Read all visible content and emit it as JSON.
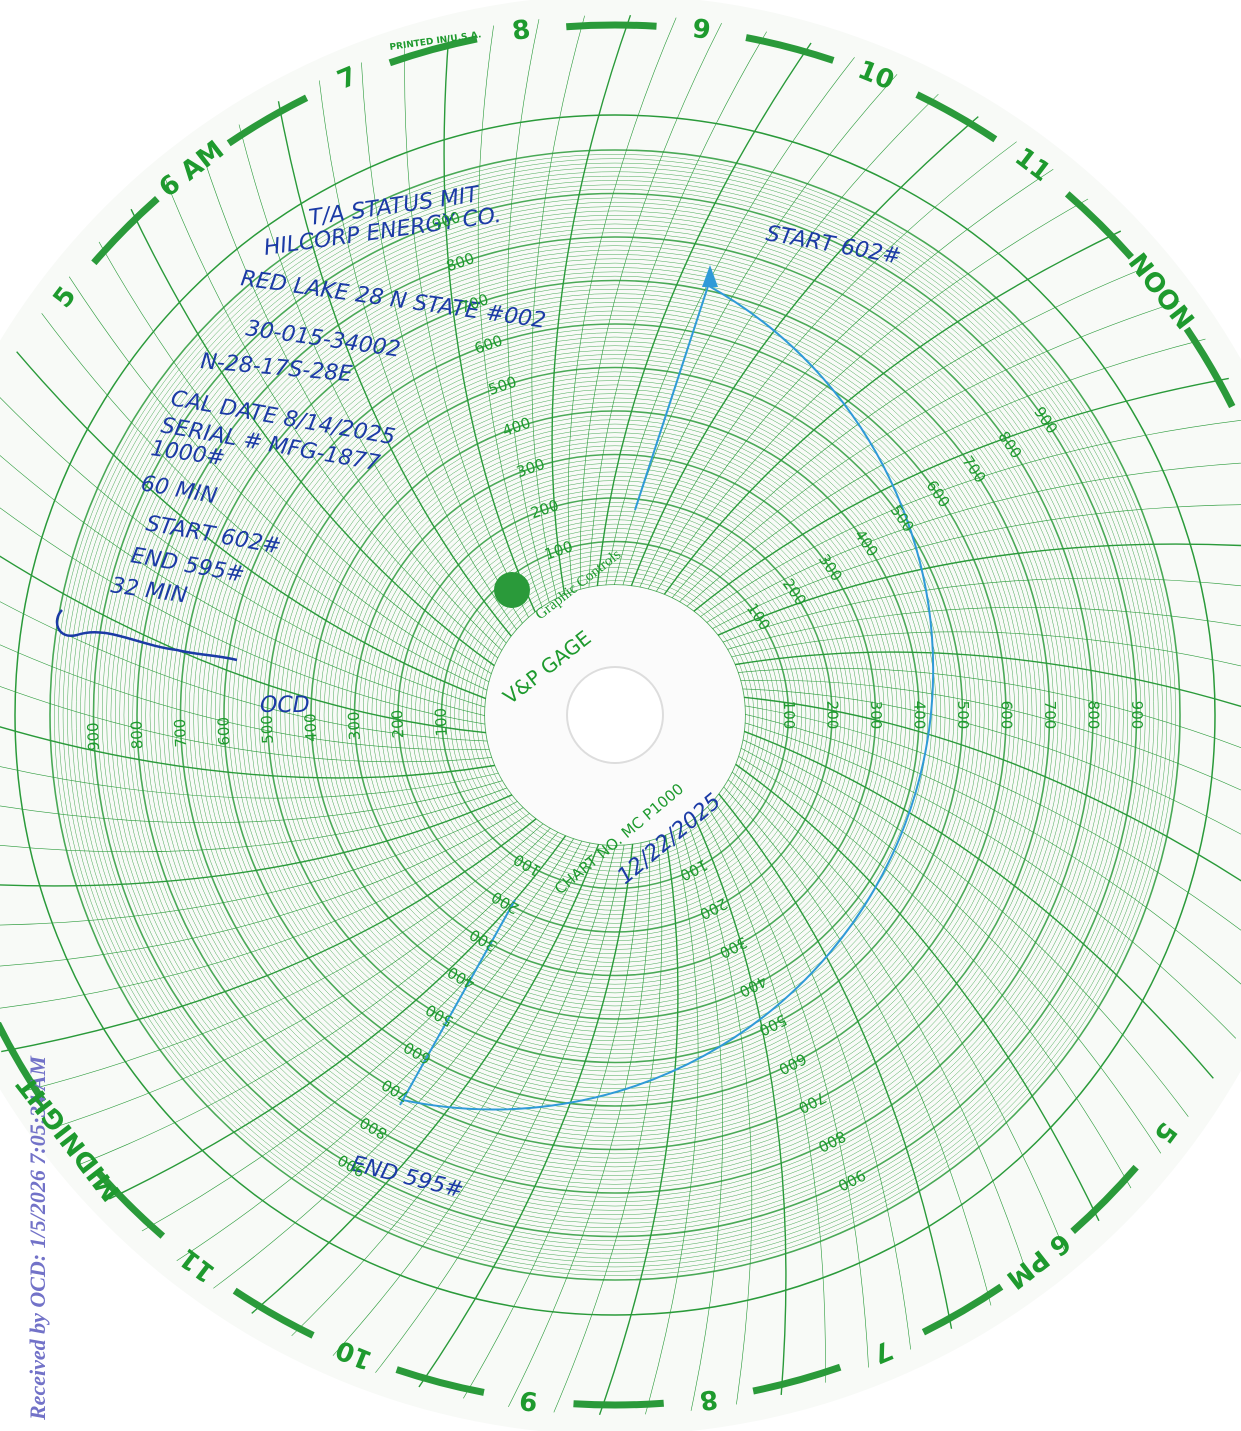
{
  "printed_note": "PRINTED IN U.S.A.",
  "morning_hours": [
    "5",
    "6 AM",
    "7",
    "8",
    "9",
    "10",
    "11",
    "NOON"
  ],
  "evening_hours": [
    "5",
    "6 PM",
    "7",
    "8",
    "9",
    "10",
    "11",
    "MIDNIGHT"
  ],
  "pressure_scale": [
    100,
    200,
    300,
    400,
    500,
    600,
    700,
    800,
    900
  ],
  "logo_text": "Graphic Controls",
  "chart_name": "V&P GAGE",
  "chart_number": "CHART NO. MC P1000",
  "handwriting": {
    "notes": [
      "T/A STATUS MIT",
      "HILCORP ENERGY CO.",
      "RED LAKE 28 N STATE #002",
      "30-015-34002",
      "N-28-17S-28E",
      "CAL DATE 8/14/2025",
      "SERIAL # MFG-1877",
      "1000#",
      "60 MIN",
      "START 602#",
      "END 595#",
      "32 MIN"
    ],
    "signoff": "OCD",
    "start_reading": "START 602#",
    "end_reading": "END 595#",
    "date": "12/22/2025"
  },
  "stamp": "Received by OCD: 1/5/2026 7:05:34 AM"
}
